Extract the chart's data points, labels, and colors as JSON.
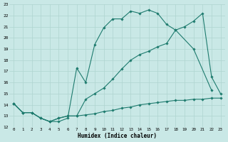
{
  "xlabel": "Humidex (Indice chaleur)",
  "xlim": [
    -0.5,
    23.5
  ],
  "ylim": [
    12,
    23
  ],
  "yticks": [
    12,
    13,
    14,
    15,
    16,
    17,
    18,
    19,
    20,
    21,
    22,
    23
  ],
  "xticks": [
    0,
    1,
    2,
    3,
    4,
    5,
    6,
    7,
    8,
    9,
    10,
    11,
    12,
    13,
    14,
    15,
    16,
    17,
    18,
    19,
    20,
    21,
    22,
    23
  ],
  "bg_color": "#c9e8e6",
  "grid_color": "#afd4d0",
  "line_color": "#1e7b6e",
  "line1_x": [
    0,
    1,
    2,
    3,
    4,
    5,
    6,
    7,
    8,
    9,
    10,
    11,
    12,
    13,
    14,
    15,
    16,
    17,
    18,
    20,
    22
  ],
  "line1_y": [
    14.1,
    13.3,
    13.3,
    12.8,
    12.5,
    12.5,
    12.8,
    17.3,
    16.0,
    19.4,
    20.9,
    21.7,
    21.7,
    22.4,
    22.2,
    22.5,
    22.2,
    21.2,
    20.7,
    19.0,
    15.3
  ],
  "line2_x": [
    0,
    1,
    2,
    3,
    4,
    5,
    6,
    7,
    8,
    9,
    10,
    11,
    12,
    13,
    14,
    15,
    16,
    17,
    18,
    19,
    20,
    21,
    22,
    23
  ],
  "line2_y": [
    14.1,
    13.3,
    13.3,
    12.8,
    12.5,
    12.8,
    13.0,
    13.0,
    14.5,
    15.0,
    15.5,
    16.3,
    17.2,
    18.0,
    18.5,
    18.8,
    19.2,
    19.5,
    20.7,
    21.0,
    21.5,
    22.2,
    16.5,
    15.0
  ],
  "line3_x": [
    0,
    1,
    2,
    3,
    4,
    5,
    6,
    7,
    8,
    9,
    10,
    11,
    12,
    13,
    14,
    15,
    16,
    17,
    18,
    19,
    20,
    21,
    22,
    23
  ],
  "line3_y": [
    14.1,
    13.3,
    13.3,
    12.8,
    12.5,
    12.8,
    13.0,
    13.0,
    13.1,
    13.2,
    13.4,
    13.5,
    13.7,
    13.8,
    14.0,
    14.1,
    14.2,
    14.3,
    14.4,
    14.4,
    14.5,
    14.5,
    14.6,
    14.6
  ]
}
